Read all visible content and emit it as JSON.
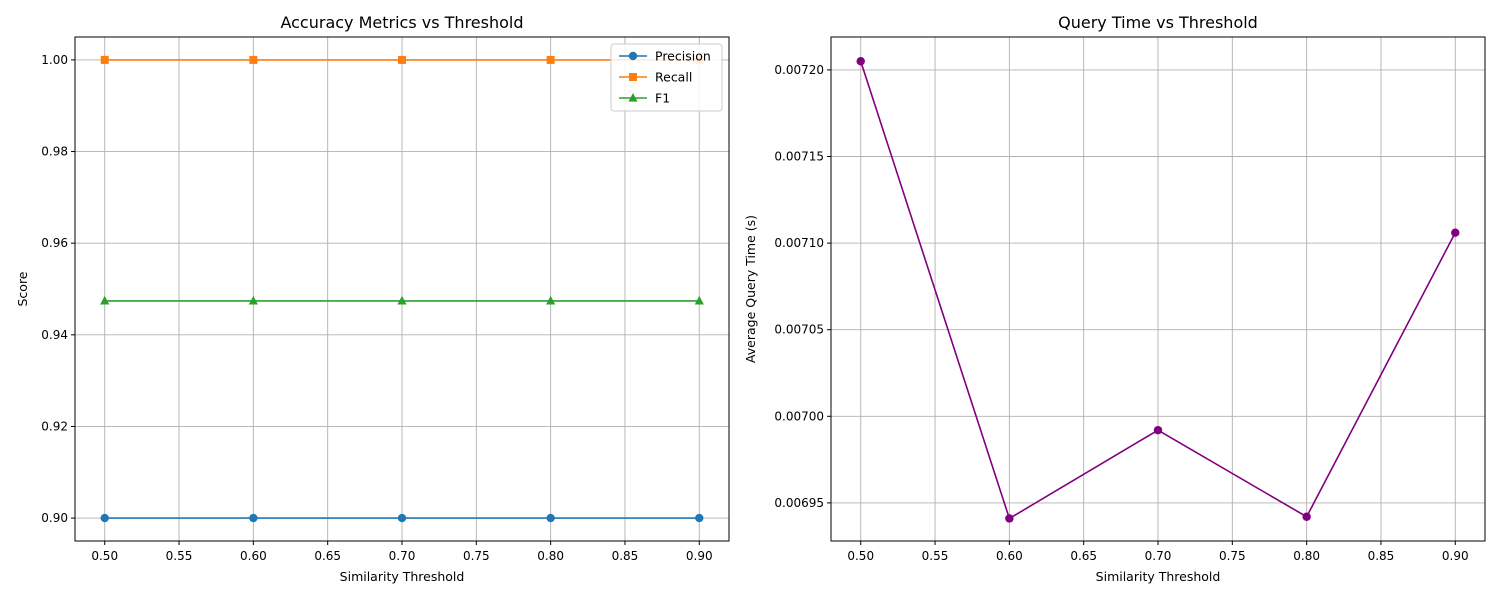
{
  "chart_data": [
    {
      "type": "line",
      "title": "Accuracy Metrics vs Threshold",
      "xlabel": "Similarity Threshold",
      "ylabel": "Score",
      "x": [
        0.5,
        0.6,
        0.7,
        0.8,
        0.9
      ],
      "xlim": [
        0.48,
        0.92
      ],
      "ylim": [
        0.895,
        1.005
      ],
      "xticks": [
        0.5,
        0.55,
        0.6,
        0.65,
        0.7,
        0.75,
        0.8,
        0.85,
        0.9
      ],
      "xtick_labels": [
        "0.50",
        "0.55",
        "0.60",
        "0.65",
        "0.70",
        "0.75",
        "0.80",
        "0.85",
        "0.90"
      ],
      "yticks": [
        0.9,
        0.92,
        0.94,
        0.96,
        0.98,
        1.0
      ],
      "ytick_labels": [
        "0.90",
        "0.92",
        "0.94",
        "0.96",
        "0.98",
        "1.00"
      ],
      "grid": true,
      "legend_position": "top-right",
      "series": [
        {
          "name": "Precision",
          "values": [
            0.9,
            0.9,
            0.9,
            0.9,
            0.9
          ],
          "color": "#1f77b4",
          "marker": "circle"
        },
        {
          "name": "Recall",
          "values": [
            1.0,
            1.0,
            1.0,
            1.0,
            1.0
          ],
          "color": "#ff7f0e",
          "marker": "square"
        },
        {
          "name": "F1",
          "values": [
            0.9474,
            0.9474,
            0.9474,
            0.9474,
            0.9474
          ],
          "color": "#2ca02c",
          "marker": "triangle"
        }
      ]
    },
    {
      "type": "line",
      "title": "Query Time vs Threshold",
      "xlabel": "Similarity Threshold",
      "ylabel": "Average Query Time (s)",
      "x": [
        0.5,
        0.6,
        0.7,
        0.8,
        0.9
      ],
      "xlim": [
        0.48,
        0.92
      ],
      "ylim": [
        0.006928,
        0.007219
      ],
      "xticks": [
        0.5,
        0.55,
        0.6,
        0.65,
        0.7,
        0.75,
        0.8,
        0.85,
        0.9
      ],
      "xtick_labels": [
        "0.50",
        "0.55",
        "0.60",
        "0.65",
        "0.70",
        "0.75",
        "0.80",
        "0.85",
        "0.90"
      ],
      "yticks": [
        0.00695,
        0.007,
        0.00705,
        0.0071,
        0.00715,
        0.0072
      ],
      "ytick_labels": [
        "0.00695",
        "0.00700",
        "0.00705",
        "0.00710",
        "0.00715",
        "0.00720"
      ],
      "grid": true,
      "series": [
        {
          "values": [
            0.007205,
            0.006941,
            0.006992,
            0.006942,
            0.007106
          ],
          "color": "#800080",
          "marker": "circle"
        }
      ]
    }
  ]
}
